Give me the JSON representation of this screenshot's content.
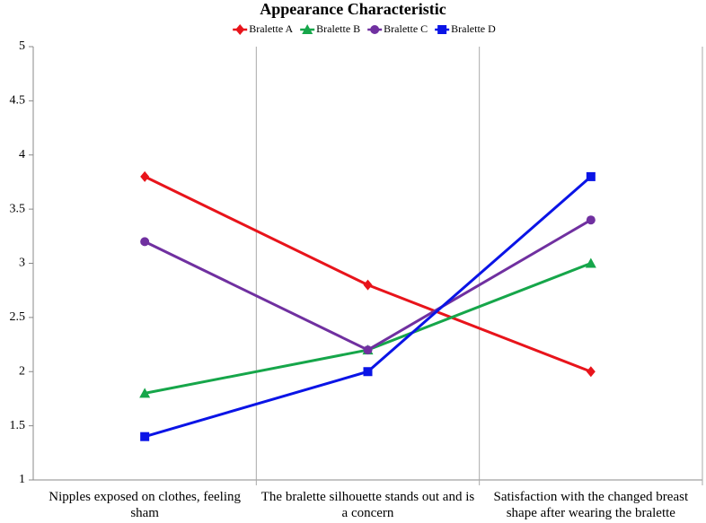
{
  "chart_data": {
    "type": "line",
    "title": "Appearance Characteristic",
    "categories": [
      "Nipples exposed on clothes, feeling sham",
      "The bralette silhouette stands out and is a concern",
      "Satisfaction with the changed breast shape after wearing the bralette"
    ],
    "series": [
      {
        "name": "Bralette A",
        "color": "#e8141b",
        "marker": "diamond",
        "values": [
          3.8,
          2.8,
          2.0
        ]
      },
      {
        "name": "Bralette B",
        "color": "#16a64a",
        "marker": "triangle",
        "values": [
          1.8,
          2.2,
          3.0
        ]
      },
      {
        "name": "Bralette C",
        "color": "#7030a0",
        "marker": "circle",
        "values": [
          3.2,
          2.2,
          3.4
        ]
      },
      {
        "name": "Bralette D",
        "color": "#0a14e6",
        "marker": "square",
        "values": [
          1.4,
          2.0,
          3.8
        ]
      }
    ],
    "ylim": [
      1,
      5
    ],
    "yticks": [
      1,
      1.5,
      2,
      2.5,
      3,
      3.5,
      4,
      4.5,
      5
    ],
    "legend": "top"
  }
}
